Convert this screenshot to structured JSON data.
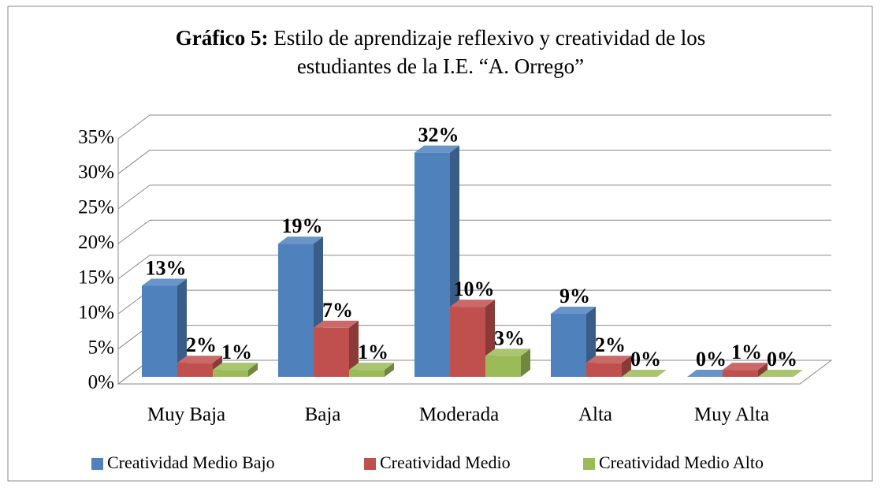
{
  "chart_data": {
    "type": "bar3d",
    "title_prefix": "Gráfico 5:",
    "title": "Estilo de aprendizaje reflexivo y creatividad de los",
    "title_line2": "estudiantes de la I.E. “A. Orrego”",
    "categories": [
      "Muy Baja",
      "Baja",
      "Moderada",
      "Alta",
      "Muy Alta"
    ],
    "series": [
      {
        "name": "Creatividad Medio Bajo",
        "color": "#4f81bd",
        "values": [
          13,
          19,
          32,
          9,
          0
        ],
        "value_labels": [
          "13%",
          "19%",
          "32%",
          "9%",
          "0%"
        ]
      },
      {
        "name": "Creatividad Medio",
        "color": "#c0504d",
        "values": [
          2,
          7,
          10,
          2,
          1
        ],
        "value_labels": [
          "2%",
          "7%",
          "10%",
          "2%",
          "1%"
        ]
      },
      {
        "name": "Creatividad Medio Alto",
        "color": "#9bbb59",
        "values": [
          1,
          1,
          3,
          0,
          0
        ],
        "value_labels": [
          "1%",
          "1%",
          "3%",
          "0%",
          "0%"
        ]
      }
    ],
    "ylim": [
      0,
      35
    ],
    "yticks": [
      {
        "value": 0,
        "label": "0%"
      },
      {
        "value": 5,
        "label": "5%"
      },
      {
        "value": 10,
        "label": "10%"
      },
      {
        "value": 15,
        "label": "15%"
      },
      {
        "value": 20,
        "label": "20%"
      },
      {
        "value": 25,
        "label": "25%"
      },
      {
        "value": 30,
        "label": "30%"
      },
      {
        "value": 35,
        "label": "35%"
      }
    ],
    "grid": true,
    "legend": "bottom"
  }
}
